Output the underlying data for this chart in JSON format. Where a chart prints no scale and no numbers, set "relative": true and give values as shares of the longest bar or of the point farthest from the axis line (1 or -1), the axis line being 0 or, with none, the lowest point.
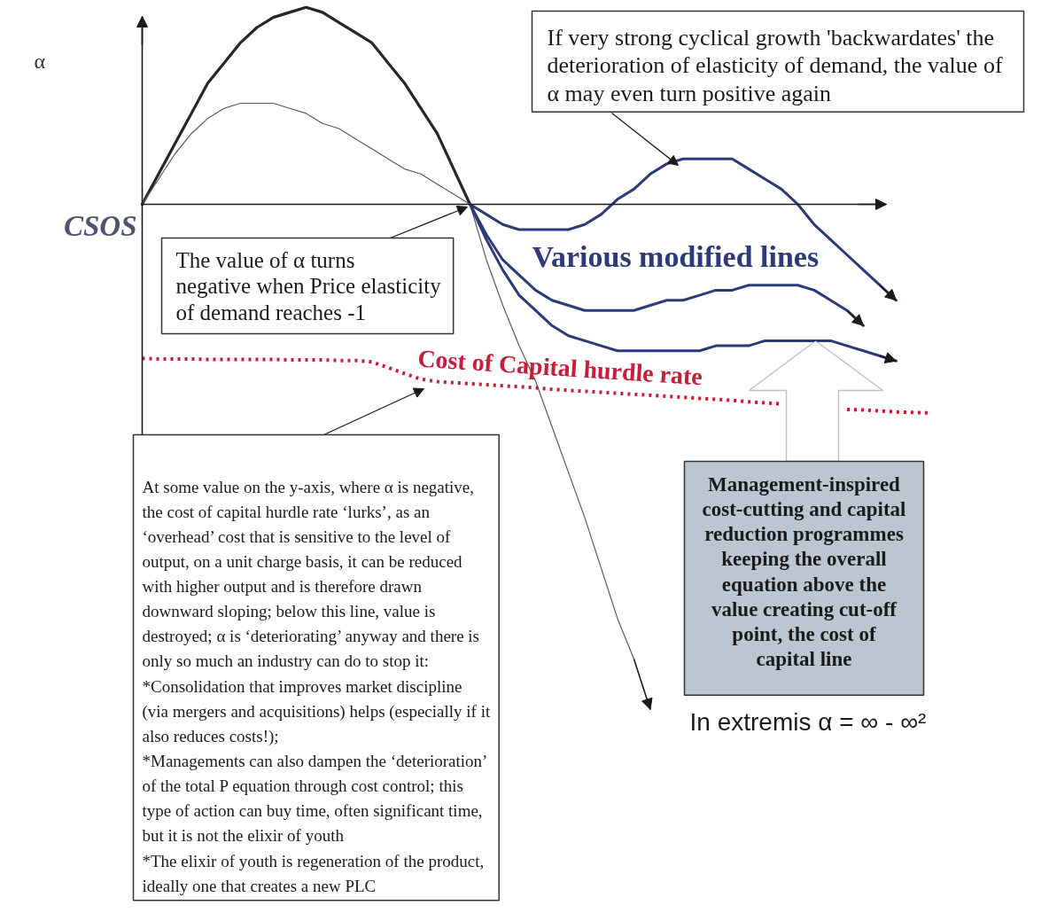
{
  "chart_data": {
    "type": "line",
    "relative": true,
    "ylabel": "α",
    "categories": [
      null,
      null,
      null,
      null,
      null,
      null,
      null,
      null,
      null,
      null,
      null,
      null,
      null,
      null,
      null,
      null,
      null,
      null,
      null,
      null,
      null,
      null,
      null,
      null,
      null,
      null,
      null,
      null,
      null,
      null,
      null,
      null,
      null,
      null,
      null,
      null,
      null,
      null,
      null,
      null,
      null,
      null,
      null,
      null,
      null,
      null,
      null,
      null,
      null
    ],
    "series": [
      {
        "color": "#262626",
        "values": [
          0,
          0.06,
          0.12,
          0.18,
          0.24,
          0.28,
          0.32,
          0.35,
          0.37,
          0.38,
          0.39,
          0.38,
          0.36,
          0.34,
          0.32,
          0.28,
          0.24,
          0.19,
          0.14,
          0.07,
          0,
          null,
          null,
          null,
          null,
          null,
          null,
          null,
          null,
          null,
          null,
          null,
          null,
          null,
          null,
          null,
          null,
          null,
          null,
          null,
          null,
          null,
          null,
          null,
          null,
          null,
          null,
          null,
          null
        ]
      },
      {
        "color": "#5a5a5a",
        "values": [
          0,
          0.05,
          0.1,
          0.14,
          0.17,
          0.19,
          0.2,
          0.2,
          0.2,
          0.19,
          0.18,
          0.16,
          0.15,
          0.13,
          0.11,
          0.09,
          0.07,
          0.06,
          0.04,
          0.02,
          0,
          -0.11,
          -0.2,
          -0.28,
          -0.35,
          -0.44,
          -0.53,
          -0.62,
          -0.72,
          -0.82,
          -0.9,
          -1.0,
          null,
          null,
          null,
          null,
          null,
          null,
          null,
          null,
          null,
          null,
          null,
          null,
          null,
          null,
          null,
          null,
          null
        ]
      },
      {
        "color": "#2b3a78",
        "values": [
          null,
          null,
          null,
          null,
          null,
          null,
          null,
          null,
          null,
          null,
          null,
          null,
          null,
          null,
          null,
          null,
          null,
          null,
          null,
          null,
          0,
          -0.02,
          -0.04,
          -0.05,
          -0.05,
          -0.05,
          -0.05,
          -0.04,
          -0.02,
          0.01,
          0.03,
          0.06,
          0.08,
          0.09,
          0.09,
          0.09,
          0.09,
          0.07,
          0.05,
          0.03,
          0.0,
          -0.04,
          -0.07,
          -0.1,
          -0.13,
          -0.16,
          -0.19,
          null,
          null
        ]
      },
      {
        "color": "#2b3a78",
        "values": [
          null,
          null,
          null,
          null,
          null,
          null,
          null,
          null,
          null,
          null,
          null,
          null,
          null,
          null,
          null,
          null,
          null,
          null,
          null,
          null,
          0,
          -0.06,
          -0.11,
          -0.14,
          -0.17,
          -0.19,
          -0.2,
          -0.21,
          -0.21,
          -0.21,
          -0.21,
          -0.2,
          -0.19,
          -0.19,
          -0.18,
          -0.17,
          -0.17,
          -0.16,
          -0.16,
          -0.16,
          -0.16,
          -0.17,
          -0.19,
          -0.21,
          -0.24,
          null,
          null,
          null,
          null
        ]
      },
      {
        "color": "#2b3a78",
        "values": [
          null,
          null,
          null,
          null,
          null,
          null,
          null,
          null,
          null,
          null,
          null,
          null,
          null,
          null,
          null,
          null,
          null,
          null,
          null,
          null,
          0,
          -0.07,
          -0.13,
          -0.18,
          -0.21,
          -0.24,
          -0.26,
          -0.27,
          -0.28,
          -0.29,
          -0.29,
          -0.29,
          -0.29,
          -0.29,
          -0.29,
          -0.28,
          -0.28,
          -0.28,
          -0.27,
          -0.27,
          -0.27,
          -0.27,
          -0.27,
          -0.28,
          -0.29,
          -0.3,
          -0.31,
          null,
          null
        ]
      },
      {
        "name": "Cost of Capital hurdle rate",
        "color": "#c41e3a",
        "line_style": "dotted",
        "values": [
          -0.305,
          -0.306,
          -0.306,
          -0.306,
          -0.307,
          -0.307,
          -0.307,
          -0.307,
          -0.307,
          -0.308,
          -0.308,
          -0.308,
          -0.309,
          -0.309,
          -0.312,
          -0.323,
          -0.335,
          -0.346,
          -0.351,
          -0.353,
          -0.355,
          -0.357,
          -0.359,
          -0.361,
          -0.363,
          -0.366,
          -0.368,
          -0.37,
          -0.372,
          -0.374,
          -0.376,
          -0.378,
          -0.38,
          -0.382,
          -0.384,
          -0.386,
          -0.388,
          -0.391,
          -0.393,
          -0.395,
          null,
          null,
          null,
          -0.406,
          -0.407,
          -0.409,
          -0.411,
          -0.412,
          -0.413
        ]
      }
    ],
    "annotations": [
      "If very strong cyclical growth 'backwardates' the\ndeterioration of elasticity of demand, the value of\nα may even turn positive again",
      "CSOS",
      "The value of α turns\nnegative when Price elasticity\nof demand reaches -1",
      "Various modified lines",
      "At some value on the y-axis, where α  is negative,\nthe cost of capital hurdle rate ‘lurks’, as an\n‘overhead’ cost that is sensitive to the level of\noutput, on a unit charge basis, it can be reduced\nwith higher output and is therefore drawn\ndownward sloping; below this line, value is\ndestroyed; α is ‘deteriorating’ anyway and there is\nonly so much an industry can do to stop it:\n *Consolidation that improves market discipline\n(via mergers and acquisitions) helps (especially if it\nalso reduces costs!);\n*Managements can also dampen the ‘deterioration’\nof the total P equation through cost control; this\ntype of action can buy time, often significant time,\nbut it is not the elixir of youth\n*The elixir of youth is regeneration of the product,\nideally one that creates a new PLC",
      "Management-inspired\ncost-cutting and capital\nreduction programmes\nkeeping the overall\nequation above the\nvalue creating cut-off\npoint, the cost of\ncapital line",
      "In extremis α = ∞ - ∞²"
    ]
  }
}
